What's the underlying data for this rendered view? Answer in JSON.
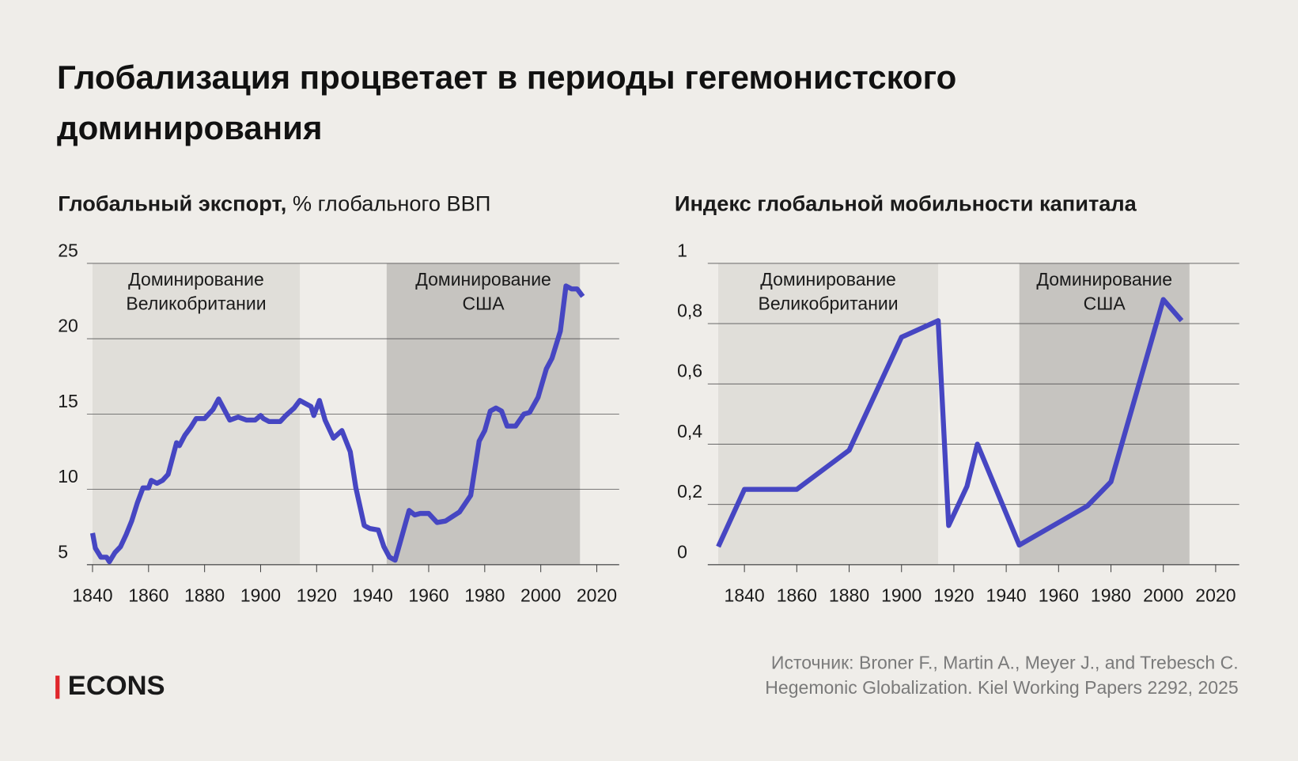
{
  "title": "Глобализация процветает в периоды гегемонистского доминирования",
  "chart_data": [
    {
      "type": "line",
      "title": "Глобальный экспорт,",
      "unit": "% глобального ВВП",
      "color": "#4646c2",
      "xlim": [
        1838,
        2028
      ],
      "ylim": [
        5,
        25
      ],
      "yticks": [
        5,
        10,
        15,
        20,
        25
      ],
      "xticks": [
        1840,
        1860,
        1880,
        1900,
        1920,
        1940,
        1960,
        1980,
        2000,
        2020
      ],
      "grid": true,
      "regions": [
        {
          "label": [
            "Доминирование",
            "Великобритании"
          ],
          "start": 1840,
          "end": 1914
        },
        {
          "label": [
            "Доминирование",
            "США"
          ],
          "start": 1945,
          "end": 2014
        }
      ],
      "x": [
        1840,
        1841,
        1843,
        1845,
        1846,
        1848,
        1850,
        1852,
        1854,
        1856,
        1858,
        1860,
        1861,
        1863,
        1865,
        1867,
        1870,
        1871,
        1873,
        1875,
        1877,
        1879,
        1880,
        1883,
        1885,
        1887,
        1889,
        1892,
        1895,
        1898,
        1900,
        1901,
        1903,
        1907,
        1909,
        1912,
        1914,
        1916,
        1918,
        1919,
        1921,
        1923,
        1926,
        1929,
        1932,
        1934,
        1937,
        1939,
        1942,
        1944,
        1946,
        1948,
        1950,
        1953,
        1955,
        1957,
        1960,
        1963,
        1966,
        1971,
        1975,
        1978,
        1980,
        1982,
        1984,
        1986,
        1988,
        1991,
        1994,
        1996,
        1999,
        2002,
        2004,
        2007,
        2009,
        2011,
        2013,
        2015
      ],
      "values": [
        7.1,
        6.1,
        5.5,
        5.5,
        5.2,
        5.8,
        6.2,
        7.0,
        7.9,
        9.1,
        10.1,
        10.1,
        10.6,
        10.4,
        10.6,
        11.0,
        13.1,
        12.9,
        13.6,
        14.1,
        14.7,
        14.7,
        14.7,
        15.3,
        16.0,
        15.3,
        14.6,
        14.8,
        14.6,
        14.6,
        14.9,
        14.7,
        14.5,
        14.5,
        14.9,
        15.4,
        15.9,
        15.7,
        15.5,
        14.9,
        15.9,
        14.6,
        13.4,
        13.9,
        12.5,
        10.1,
        7.6,
        7.4,
        7.3,
        6.2,
        5.5,
        5.3,
        6.6,
        8.6,
        8.3,
        8.4,
        8.4,
        7.8,
        7.9,
        8.5,
        9.6,
        13.2,
        13.9,
        15.2,
        15.4,
        15.2,
        14.2,
        14.2,
        15.0,
        15.1,
        16.1,
        18.0,
        18.7,
        20.5,
        23.5,
        23.3,
        23.3,
        22.8
      ]
    },
    {
      "type": "line",
      "title": "Индекс глобальной мобильности капитала",
      "color": "#4646c2",
      "xlim": [
        1826,
        2029
      ],
      "ylim": [
        0,
        1
      ],
      "yticks": [
        0,
        {
          "value": 0.2,
          "label": "0,2"
        },
        {
          "value": 0.4,
          "label": "0,4"
        },
        {
          "value": 0.6,
          "label": "0,6"
        },
        {
          "value": 0.8,
          "label": "0,8"
        },
        1
      ],
      "xticks": [
        1840,
        1860,
        1880,
        1900,
        1920,
        1940,
        1960,
        1980,
        2000,
        2020
      ],
      "grid": true,
      "regions": [
        {
          "label": [
            "Доминирование",
            "Великобритании"
          ],
          "start": 1830,
          "end": 1914
        },
        {
          "label": [
            "Доминирование",
            "США"
          ],
          "start": 1945,
          "end": 2010
        }
      ],
      "x": [
        1830,
        1840,
        1860,
        1880,
        1900,
        1914,
        1918,
        1925,
        1929,
        1945,
        1971,
        1980,
        2000,
        2007
      ],
      "values": [
        0.06,
        0.25,
        0.25,
        0.38,
        0.755,
        0.81,
        0.13,
        0.26,
        0.4,
        0.065,
        0.195,
        0.275,
        0.88,
        0.81
      ]
    }
  ],
  "source": [
    "Источник: Broner F., Martin A., Meyer J., and Trebesch C.",
    "Hegemonic Globalization. Kiel Working Papers 2292, 2025"
  ],
  "logo": "ECONS"
}
